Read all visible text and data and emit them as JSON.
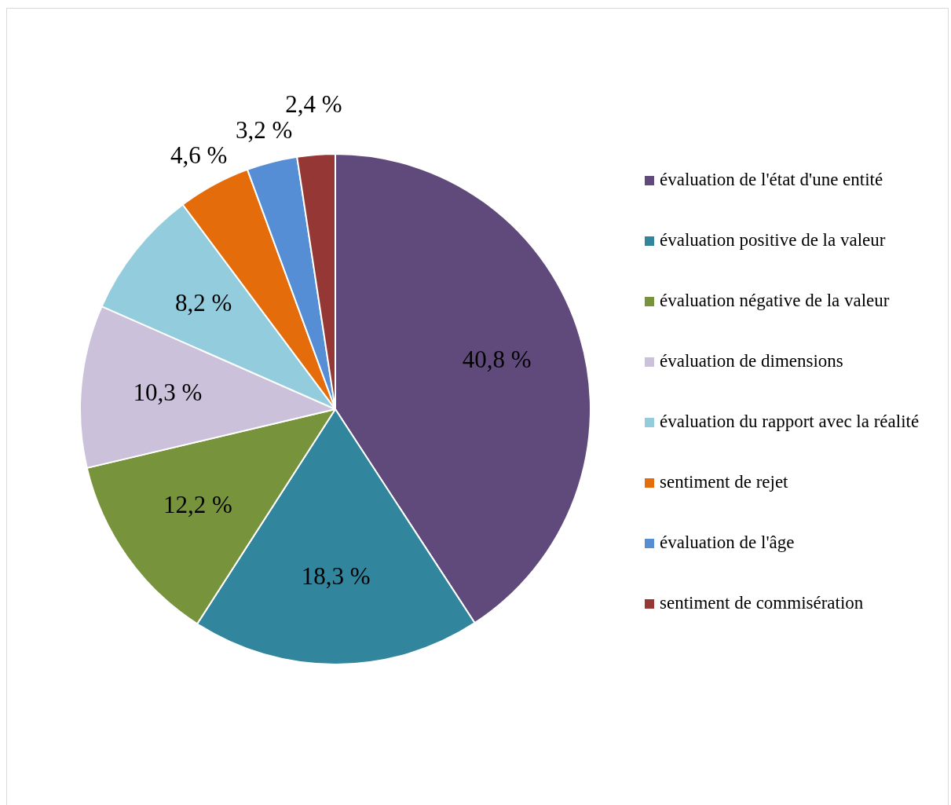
{
  "chart_data": {
    "type": "pie",
    "categories": [
      "évaluation de l'état d'une entité",
      "évaluation positive de la valeur",
      "évaluation négative de la valeur",
      "évaluation de dimensions",
      "évaluation du rapport avec la réalité",
      "sentiment de rejet",
      "évaluation de l'âge",
      "sentiment de commisération"
    ],
    "values": [
      40.8,
      18.3,
      12.2,
      10.3,
      8.2,
      4.6,
      3.2,
      2.4
    ],
    "value_labels": [
      "40,8 %",
      "18,3 %",
      "12,2 %",
      "10,3 %",
      "8,2 %",
      "4,6 %",
      "3,2 %",
      "2,4 %"
    ],
    "colors": [
      "#604a7b",
      "#31859c",
      "#77933c",
      "#ccc1da",
      "#93cddd",
      "#e46c0a",
      "#558ed5",
      "#953735"
    ],
    "legend": "right"
  }
}
